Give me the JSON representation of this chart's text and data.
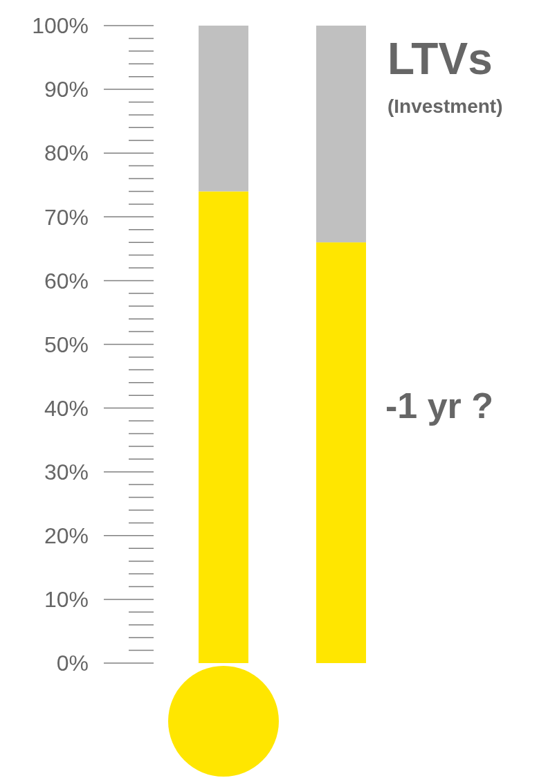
{
  "chart_data": {
    "type": "bar",
    "title": "LTVs",
    "subtitle": "(Investment)",
    "annotations": [
      "-1 yr ?"
    ],
    "categories": [
      null,
      null
    ],
    "stacked": true,
    "ylim": [
      0,
      100
    ],
    "yticks": [
      {
        "value": 0,
        "label": "0%"
      },
      {
        "value": 10,
        "label": "10%"
      },
      {
        "value": 20,
        "label": "20%"
      },
      {
        "value": 30,
        "label": "30%"
      },
      {
        "value": 40,
        "label": "40%"
      },
      {
        "value": 50,
        "label": "50%"
      },
      {
        "value": 60,
        "label": "60%"
      },
      {
        "value": 70,
        "label": "70%"
      },
      {
        "value": 80,
        "label": "80%"
      },
      {
        "value": 90,
        "label": "90%"
      },
      {
        "value": 100,
        "label": "100%"
      }
    ],
    "series": [
      {
        "color": "#ffe600",
        "values": [
          74,
          66
        ]
      },
      {
        "color": "#c0c0c0",
        "values": [
          26,
          34
        ]
      }
    ]
  }
}
